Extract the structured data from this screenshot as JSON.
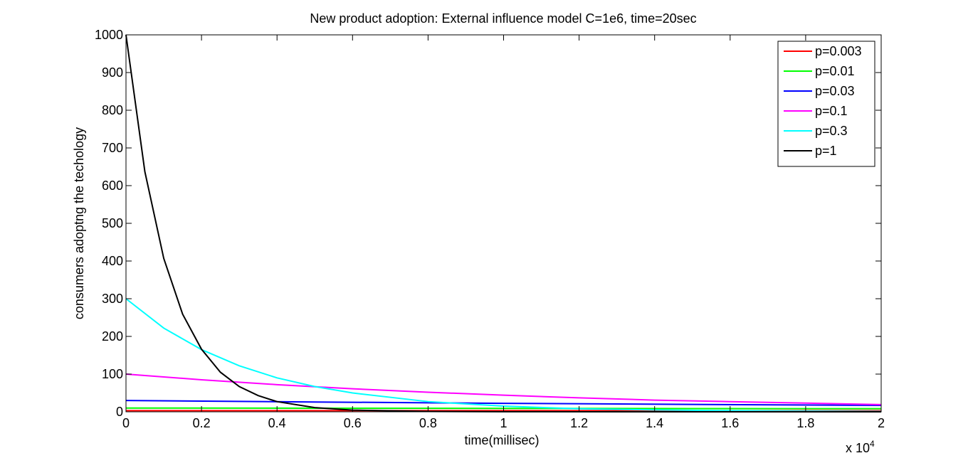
{
  "chart_data": {
    "type": "line",
    "title": "New product adoption: External influence model  C=1e6, time=20sec",
    "xlabel": "time(millisec)",
    "ylabel": "consumers adoptng the techology",
    "x_multiplier_label": "x 10",
    "x_multiplier_exponent": "4",
    "xlim": [
      0,
      2
    ],
    "ylim": [
      0,
      1000
    ],
    "xticks": [
      0,
      0.2,
      0.4,
      0.6,
      0.8,
      1,
      1.2,
      1.4,
      1.6,
      1.8,
      2
    ],
    "xtick_labels": [
      "0",
      "0.2",
      "0.4",
      "0.6",
      "0.8",
      "1",
      "1.2",
      "1.4",
      "1.6",
      "1.8",
      "2"
    ],
    "yticks": [
      0,
      100,
      200,
      300,
      400,
      500,
      600,
      700,
      800,
      900,
      1000
    ],
    "ytick_labels": [
      "0",
      "100",
      "200",
      "300",
      "400",
      "500",
      "600",
      "700",
      "800",
      "900",
      "1000"
    ],
    "grid": false,
    "legend_position": "top-right",
    "series": [
      {
        "name": "p=0.003",
        "color": "#ff0000",
        "x": [
          0,
          0.5,
          1,
          1.5,
          2
        ],
        "y": [
          3,
          3,
          3,
          3,
          3
        ]
      },
      {
        "name": "p=0.01",
        "color": "#00ff00",
        "x": [
          0,
          0.5,
          1,
          1.5,
          2
        ],
        "y": [
          10,
          9.5,
          9,
          8.6,
          8.2
        ]
      },
      {
        "name": "p=0.03",
        "color": "#0000ff",
        "x": [
          0,
          0.5,
          1,
          1.5,
          2
        ],
        "y": [
          30,
          26,
          22.5,
          19.5,
          17
        ]
      },
      {
        "name": "p=0.1",
        "color": "#ff00ff",
        "x": [
          0,
          0.2,
          0.4,
          0.6,
          0.8,
          1,
          1.2,
          1.4,
          1.6,
          1.8,
          2
        ],
        "y": [
          100,
          85,
          72,
          61,
          52,
          44,
          37,
          31,
          27,
          23,
          19
        ]
      },
      {
        "name": "p=0.3",
        "color": "#00ffff",
        "x": [
          0,
          0.1,
          0.2,
          0.3,
          0.4,
          0.5,
          0.6,
          0.8,
          1,
          1.2,
          1.4,
          1.6,
          1.8,
          2
        ],
        "y": [
          300,
          222,
          165,
          122,
          90,
          67,
          50,
          27,
          15,
          8,
          5,
          3,
          2,
          1
        ]
      },
      {
        "name": "p=1",
        "color": "#000000",
        "x": [
          0,
          0.05,
          0.1,
          0.15,
          0.2,
          0.25,
          0.3,
          0.35,
          0.4,
          0.5,
          0.6,
          0.8,
          1,
          1.5,
          2
        ],
        "y": [
          1000,
          637,
          407,
          259,
          166,
          105,
          67,
          43,
          27,
          11,
          4.5,
          1,
          0.2,
          0,
          0
        ]
      }
    ]
  }
}
